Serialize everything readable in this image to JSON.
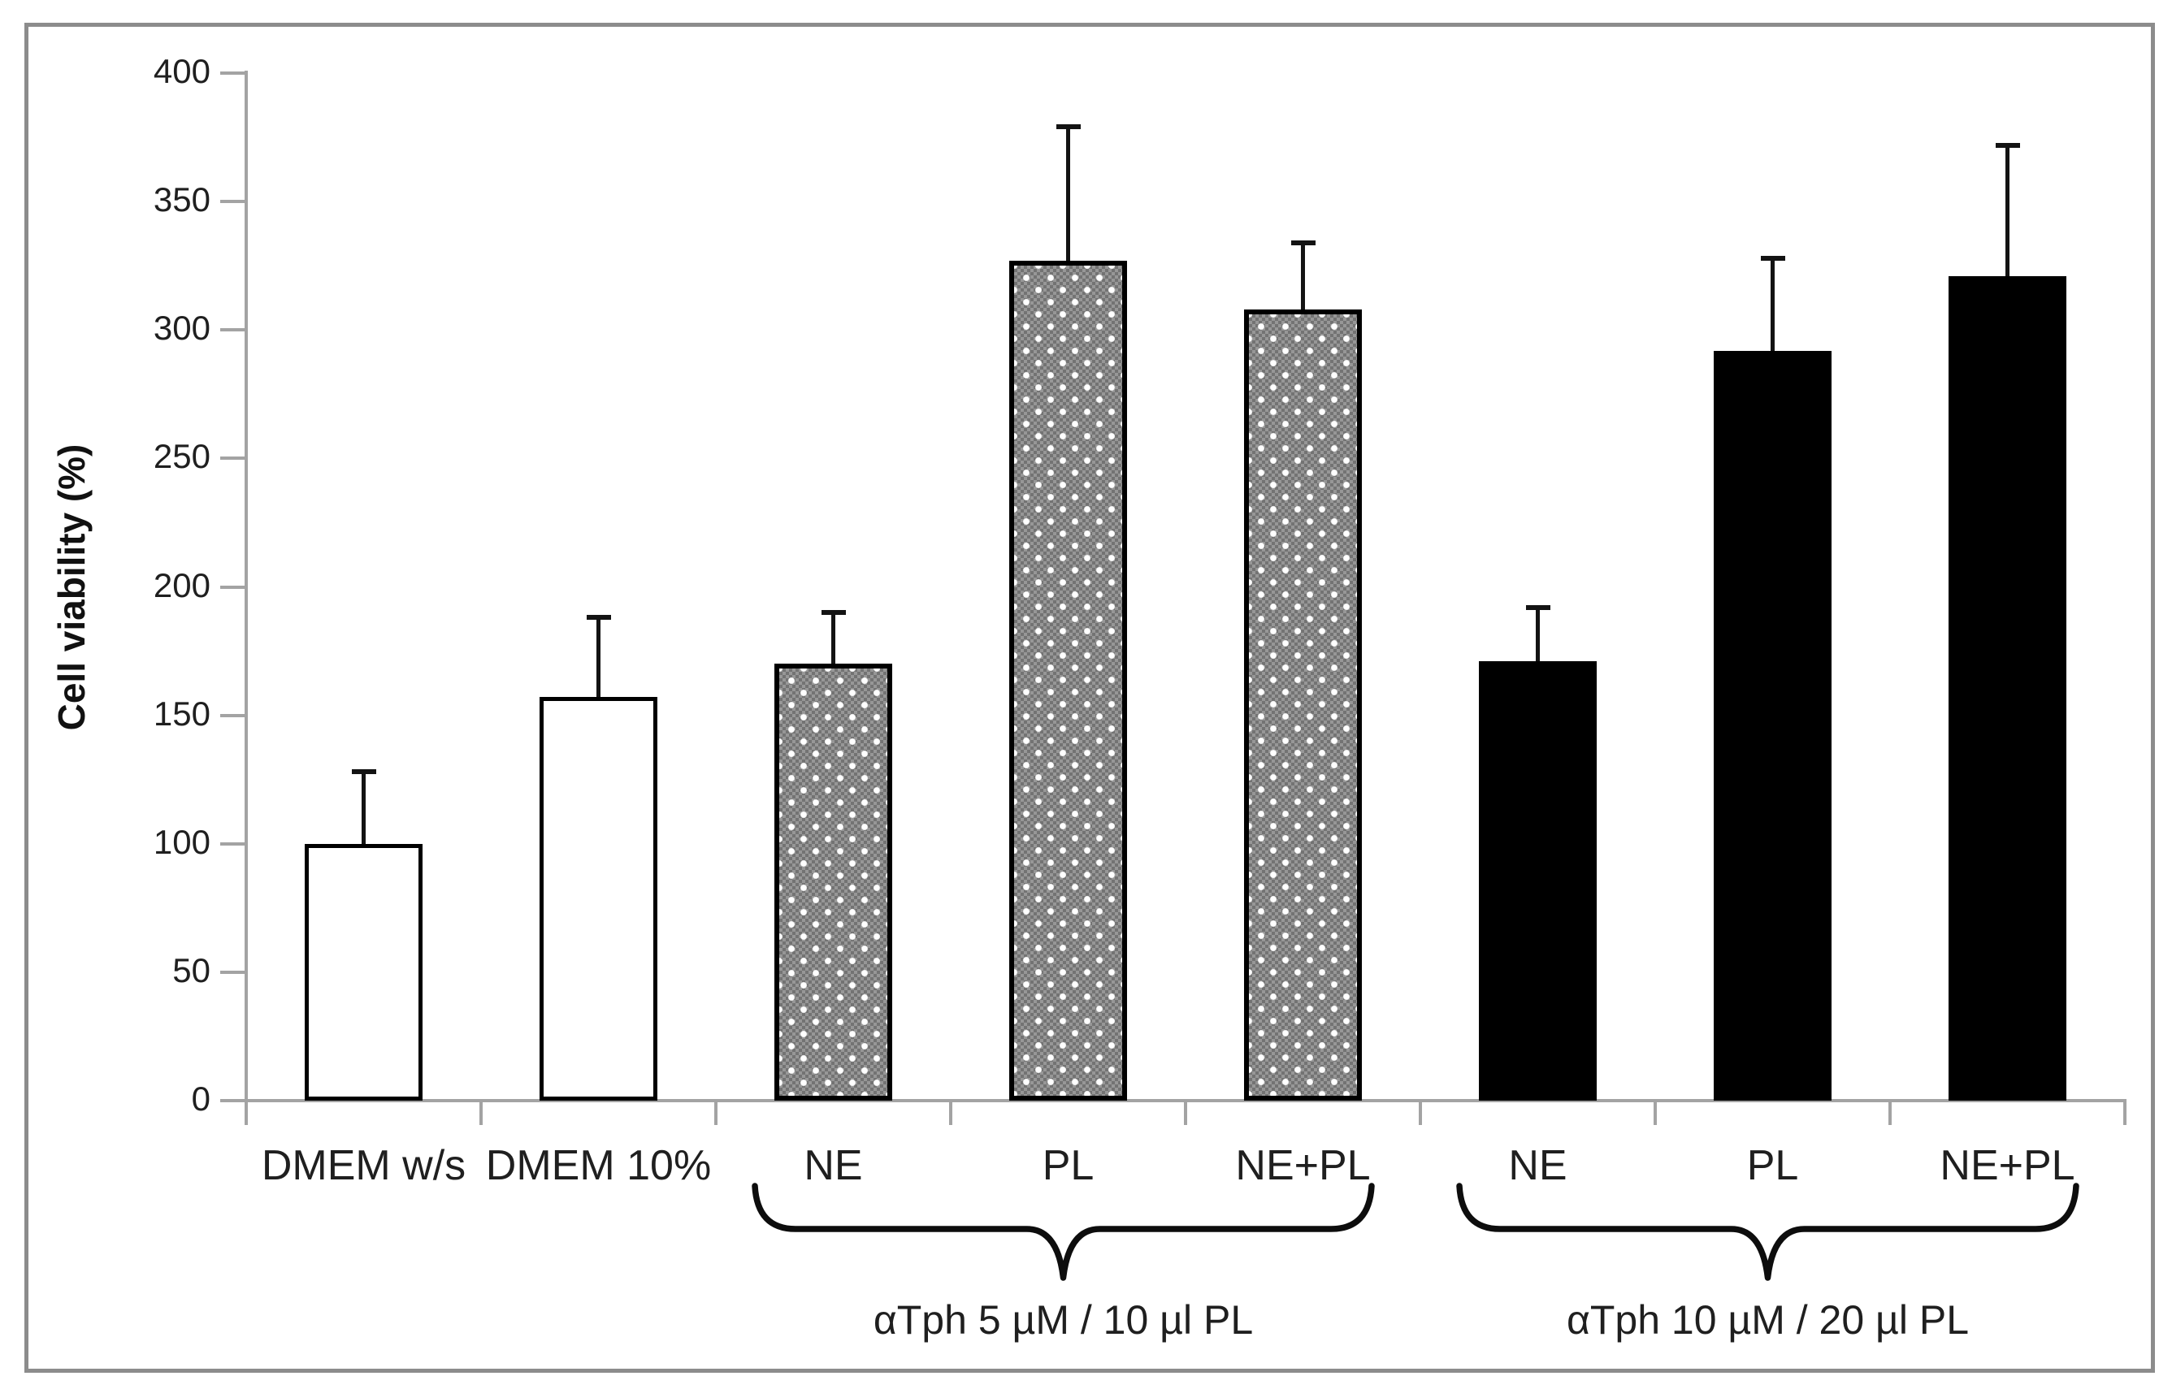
{
  "figure": {
    "frame_color": "#8c8c8c",
    "background": "#ffffff",
    "axis_color": "#a3a3a3",
    "text_color": "#1f1f1f",
    "bar_border_color": "#000000"
  },
  "chart_data": {
    "type": "bar",
    "title": "",
    "xlabel": "",
    "ylabel": "Cell viability (%)",
    "ylim": [
      0,
      400
    ],
    "ytick_step": 50,
    "yticks": [
      0,
      50,
      100,
      150,
      200,
      250,
      300,
      350,
      400
    ],
    "grid": false,
    "legend_position": "none",
    "error_bars": "plus-one-sided-SD",
    "categories": [
      "DMEM w/s",
      "DMEM 10%",
      "NE",
      "PL",
      "NE+PL",
      "NE",
      "PL",
      "NE+PL"
    ],
    "bars": [
      {
        "label": "DMEM w/s",
        "value": 100,
        "error_plus": 28,
        "style": "white"
      },
      {
        "label": "DMEM 10%",
        "value": 157,
        "error_plus": 31,
        "style": "white"
      },
      {
        "label": "NE",
        "value": 170,
        "error_plus": 20,
        "style": "hatched"
      },
      {
        "label": "PL",
        "value": 327,
        "error_plus": 52,
        "style": "hatched"
      },
      {
        "label": "NE+PL",
        "value": 308,
        "error_plus": 26,
        "style": "hatched"
      },
      {
        "label": "NE",
        "value": 171,
        "error_plus": 21,
        "style": "black"
      },
      {
        "label": "PL",
        "value": 292,
        "error_plus": 36,
        "style": "black"
      },
      {
        "label": "NE+PL",
        "value": 321,
        "error_plus": 51,
        "style": "black"
      }
    ],
    "groups": [
      {
        "label": "αTph 5 µM / 10 µl PL",
        "from": 2,
        "to": 4
      },
      {
        "label": "αTph 10 µM / 20 µl PL",
        "from": 5,
        "to": 7
      }
    ],
    "bar_styles": {
      "white": {
        "fill": "#ffffff",
        "border": "#000000"
      },
      "hatched": {
        "fill": "#828282 with white dot pattern",
        "border": "#000000"
      },
      "black": {
        "fill": "#000000",
        "border": "#000000"
      }
    }
  }
}
